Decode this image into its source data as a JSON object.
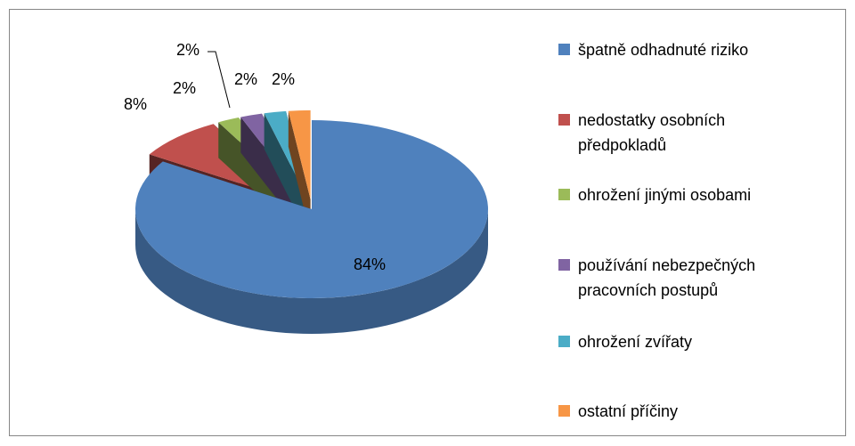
{
  "chart_data": {
    "type": "pie",
    "categories": [
      "špatně odhadnuté riziko",
      "nedostatky osobních předpokladů",
      "ohrožení jinými osobami",
      "používání nebezpečných pracovních postupů",
      "ohrožení zvířaty",
      "ostatní příčiny"
    ],
    "values": [
      84,
      8,
      2,
      2,
      2,
      2
    ],
    "value_labels": [
      "84%",
      "8%",
      "2%",
      "2%",
      "2%",
      "2%"
    ],
    "colors": [
      "#4f81bd",
      "#c0504d",
      "#9bbb59",
      "#8064a2",
      "#4bacc6",
      "#f79646"
    ],
    "legend": "right"
  }
}
